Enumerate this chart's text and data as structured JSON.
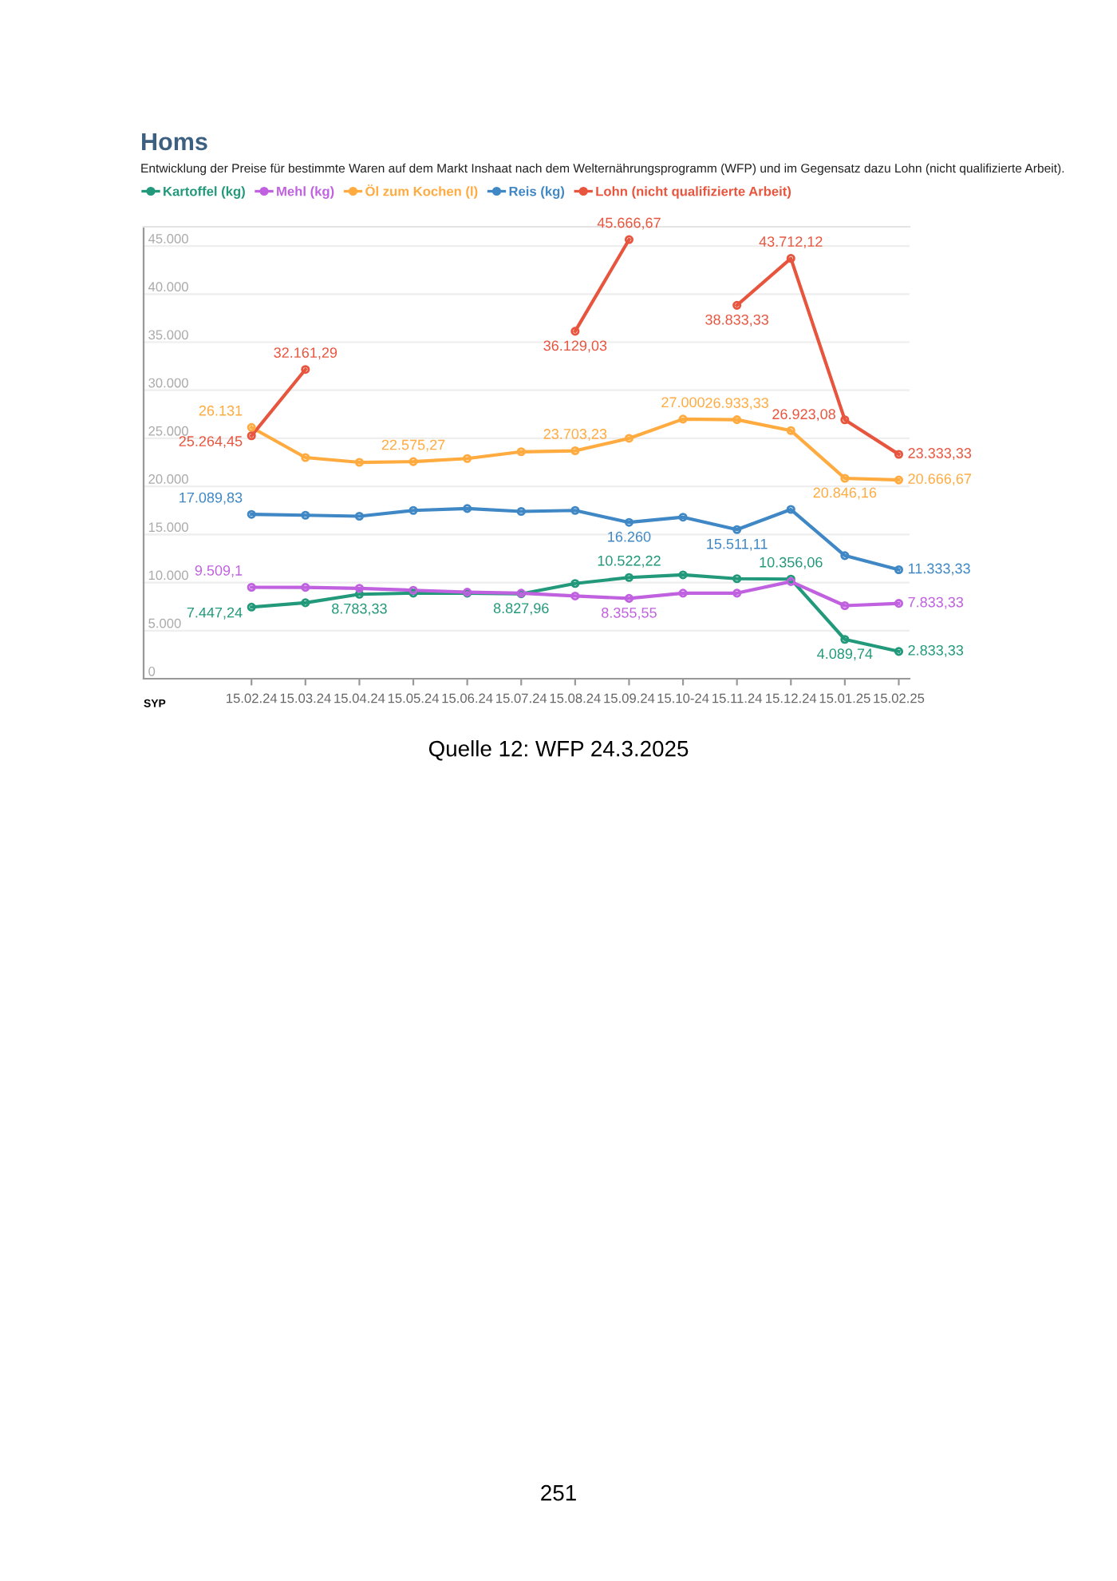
{
  "chart_data": {
    "type": "line",
    "title": "Homs",
    "subtitle": "Entwicklung der Preise für bestimmte Waren auf dem Markt Inshaat nach dem Welternährungsprogramm (WFP) und im Gegensatz dazu Lohn (nicht qualifizierte Arbeit).",
    "ylabel": "SYP",
    "categories": [
      "15.02.24",
      "15.03.24",
      "15.04.24",
      "15.05.24",
      "15.06.24",
      "15.07.24",
      "15.08.24",
      "15.09.24",
      "15.10-24",
      "15.11.24",
      "15.12.24",
      "15.01.25",
      "15.02.25"
    ],
    "series": [
      {
        "name": "Kartoffel (kg)",
        "color": "#21997a",
        "values": [
          7447.24,
          7900,
          8783.33,
          8900,
          8900,
          8827.96,
          9900,
          10522.22,
          10800,
          10400,
          10356.06,
          4089.74,
          2833.33
        ],
        "value_labels": [
          "7.447,24",
          null,
          "8.783,33",
          null,
          null,
          "8.827,96",
          null,
          "10.522,22",
          null,
          null,
          "10.356,06",
          "4.089,74",
          "2.833,33"
        ]
      },
      {
        "name": "Mehl (kg)",
        "color": "#c061e0",
        "values": [
          9509.1,
          9500,
          9400,
          9200,
          9000,
          8900,
          8600,
          8355.55,
          8900,
          8900,
          10100,
          7600,
          7833.33
        ],
        "value_labels": [
          "9.509,1",
          null,
          null,
          null,
          null,
          null,
          null,
          "8.355,55",
          null,
          null,
          null,
          null,
          "7.833,33"
        ]
      },
      {
        "name": "Öl zum Kochen (l)",
        "color": "#ffab40",
        "values": [
          26131,
          23000,
          22500,
          22575.27,
          22900,
          23600,
          23703.23,
          25000,
          27000,
          26933.33,
          25800,
          20846.16,
          20666.67
        ],
        "value_labels": [
          "26.131",
          null,
          null,
          "22.575,27",
          null,
          null,
          "23.703,23",
          null,
          "27.000",
          "26.933,33",
          null,
          "20.846,16",
          "20.666,67"
        ]
      },
      {
        "name": "Reis (kg)",
        "color": "#3f88c5",
        "values": [
          17089.83,
          17000,
          16900,
          17500,
          17700,
          17400,
          17500,
          16260,
          16800,
          15511.11,
          17600,
          12800,
          11333.33
        ],
        "value_labels": [
          "17.089,83",
          null,
          null,
          null,
          null,
          null,
          null,
          "16.260",
          null,
          "15.511,11",
          null,
          null,
          "11.333,33"
        ]
      },
      {
        "name": "Lohn (nicht qualifizierte Arbeit)",
        "color": "#e8553e",
        "values": [
          25264.45,
          32161.29,
          null,
          null,
          null,
          null,
          36129.03,
          45666.67,
          null,
          38833.33,
          43712.12,
          26923.08,
          23333.33
        ],
        "value_labels": [
          "25.264,45",
          "32.161,29",
          null,
          null,
          null,
          null,
          "36.129,03",
          "45.666,67",
          null,
          "38.833,33",
          "43.712,12",
          "26.923,08",
          "23.333,33"
        ]
      }
    ],
    "ylim": [
      0,
      47000
    ],
    "yticks": [
      0,
      {
        "value": 5000,
        "label": "5.000"
      },
      {
        "value": 10000,
        "label": "10.000"
      },
      {
        "value": 15000,
        "label": "15.000"
      },
      {
        "value": 20000,
        "label": "20.000"
      },
      {
        "value": 25000,
        "label": "25.000"
      },
      {
        "value": 30000,
        "label": "30.000"
      },
      {
        "value": 35000,
        "label": "35.000"
      },
      {
        "value": 40000,
        "label": "40.000"
      },
      {
        "value": 45000,
        "label": "45.000"
      }
    ],
    "grid": "y",
    "legend": "top left",
    "marker": "circle",
    "line_style": "solid",
    "annotations": [
      "Quelle 12: WFP 24.3.2025",
      "251"
    ]
  }
}
